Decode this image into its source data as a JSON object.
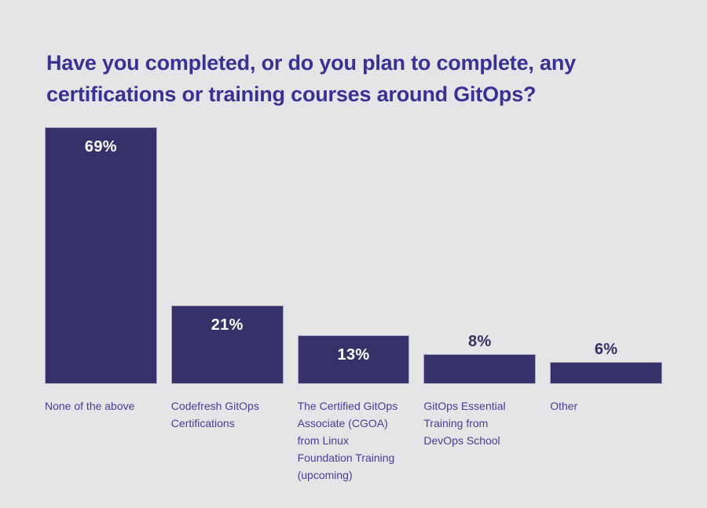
{
  "page": {
    "background": "#e5e4e6"
  },
  "title": "Have you completed, or do you plan to complete, any certifications or training courses around GitOps?",
  "chart_data": {
    "type": "bar",
    "title": "Have you completed, or do you plan to complete, any certifications or training courses around GitOps?",
    "categories": [
      "None of the above",
      "Codefresh GitOps Certifications",
      "The Certified GitOps Associate (CGOA) from Linux Foundation Training (upcoming)",
      "GitOps Essential Training from DevOps School",
      "Other"
    ],
    "values": [
      69,
      21,
      13,
      8,
      6
    ],
    "value_labels": [
      "69%",
      "21%",
      "13%",
      "8%",
      "6%"
    ],
    "value_label_positions": [
      "inside",
      "inside",
      "inside",
      "above",
      "above"
    ],
    "xlabel": "",
    "ylabel": "",
    "ylim": [
      0,
      69
    ],
    "grid": false,
    "legend": false,
    "colors": {
      "bar": "#363269",
      "bar_border": "#a9a7c2",
      "title": "#3b3192",
      "category_label": "#4a3d96",
      "value_label_inside": "#ffffff",
      "value_label_above": "#343162",
      "background": "#e5e4e6"
    }
  }
}
